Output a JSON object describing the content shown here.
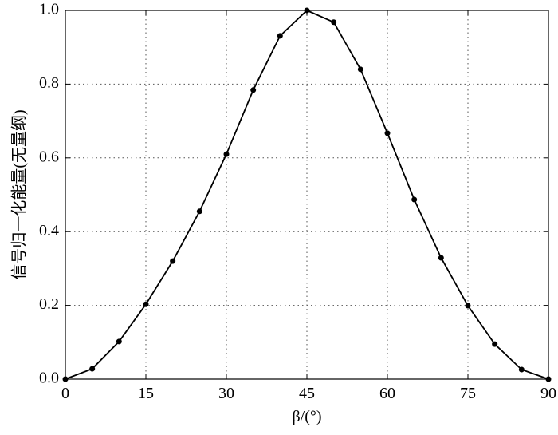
{
  "chart_data": {
    "type": "line",
    "x_label": "β/(°)",
    "y_label": "信号归一化能量(无量纲)",
    "x": [
      0,
      5,
      10,
      15,
      20,
      25,
      30,
      35,
      40,
      45,
      50,
      55,
      60,
      65,
      70,
      75,
      80,
      85,
      90
    ],
    "series": [
      {
        "color": "#000000",
        "values": [
          0,
          0.028,
          0.102,
          0.203,
          0.32,
          0.455,
          0.61,
          0.784,
          0.931,
          1.0,
          0.968,
          0.84,
          0.667,
          0.487,
          0.329,
          0.199,
          0.095,
          0.026,
          0
        ]
      }
    ],
    "xlim": [
      0,
      90
    ],
    "ylim": [
      0,
      1
    ],
    "xticks": [
      0,
      15,
      30,
      45,
      60,
      75,
      90
    ],
    "yticks": [
      {
        "value": 0,
        "label": "0.0"
      },
      {
        "value": 0.2,
        "label": "0.2"
      },
      {
        "value": 0.4,
        "label": "0.4"
      },
      {
        "value": 0.6,
        "label": "0.6"
      },
      {
        "value": 0.8,
        "label": "0.8"
      },
      {
        "value": 1,
        "label": "1.0"
      }
    ],
    "grid": true,
    "markers": true
  }
}
